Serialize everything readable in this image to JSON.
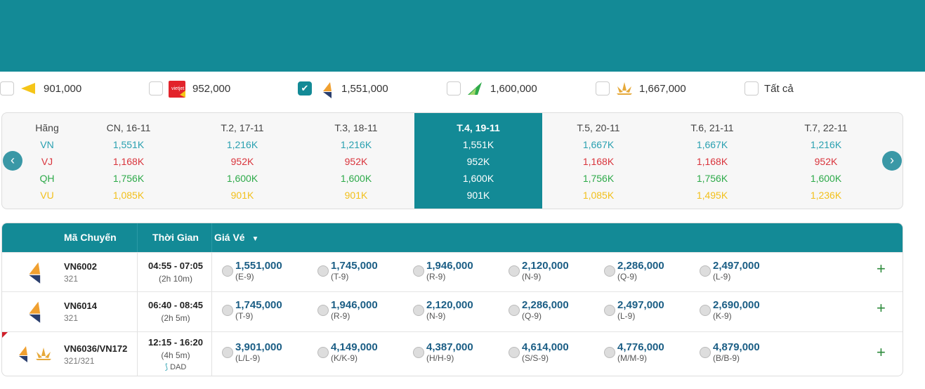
{
  "filters": [
    {
      "airline": "VU",
      "price": "901,000",
      "checked": false
    },
    {
      "airline": "VJ",
      "price": "952,000",
      "checked": false
    },
    {
      "airline": "VN",
      "price": "1,551,000",
      "checked": true
    },
    {
      "airline": "QH",
      "price": "1,600,000",
      "checked": false
    },
    {
      "airline": "VN-partner",
      "price": "1,667,000",
      "checked": false
    },
    {
      "airline": "all",
      "price": "Tất cả",
      "checked": false
    }
  ],
  "dates": {
    "label_header": "Hãng",
    "airlines": [
      "VN",
      "VJ",
      "QH",
      "VU"
    ],
    "columns": [
      {
        "date": "CN, 16-11",
        "prices": [
          "1,551K",
          "1,168K",
          "1,756K",
          "1,085K"
        ]
      },
      {
        "date": "T.2, 17-11",
        "prices": [
          "1,216K",
          "952K",
          "1,600K",
          "901K"
        ]
      },
      {
        "date": "T.3, 18-11",
        "prices": [
          "1,216K",
          "952K",
          "1,600K",
          "901K"
        ]
      },
      {
        "date": "T.4, 19-11",
        "prices": [
          "1,551K",
          "952K",
          "1,600K",
          "901K"
        ],
        "selected": true
      },
      {
        "date": "T.5, 20-11",
        "prices": [
          "1,667K",
          "1,168K",
          "1,756K",
          "1,085K"
        ]
      },
      {
        "date": "T.6, 21-11",
        "prices": [
          "1,667K",
          "1,168K",
          "1,756K",
          "1,495K"
        ]
      },
      {
        "date": "T.7, 22-11",
        "prices": [
          "1,216K",
          "952K",
          "1,600K",
          "1,236K"
        ]
      }
    ]
  },
  "flights": {
    "headers": {
      "code": "Mã Chuyến",
      "time": "Thời Gian",
      "price": "Giá Vé"
    },
    "rows": [
      {
        "code": "VN6002",
        "aircraft": "321",
        "time": "04:55 - 07:05",
        "duration": "(2h 10m)",
        "stop": "",
        "fares": [
          [
            "1,551,000",
            "(E-9)"
          ],
          [
            "1,745,000",
            "(T-9)"
          ],
          [
            "1,946,000",
            "(R-9)"
          ],
          [
            "2,120,000",
            "(N-9)"
          ],
          [
            "2,286,000",
            "(Q-9)"
          ],
          [
            "2,497,000",
            "(L-9)"
          ]
        ]
      },
      {
        "code": "VN6014",
        "aircraft": "321",
        "time": "06:40 - 08:45",
        "duration": "(2h 5m)",
        "stop": "",
        "fares": [
          [
            "1,745,000",
            "(T-9)"
          ],
          [
            "1,946,000",
            "(R-9)"
          ],
          [
            "2,120,000",
            "(N-9)"
          ],
          [
            "2,286,000",
            "(Q-9)"
          ],
          [
            "2,497,000",
            "(L-9)"
          ],
          [
            "2,690,000",
            "(K-9)"
          ]
        ]
      },
      {
        "code": "VN6036/VN172",
        "aircraft": "321/321",
        "time": "12:15 - 16:20",
        "duration": "(4h 5m)",
        "stop": "DAD",
        "fares": [
          [
            "3,901,000",
            "(L/L-9)"
          ],
          [
            "4,149,000",
            "(K/K-9)"
          ],
          [
            "4,387,000",
            "(H/H-9)"
          ],
          [
            "4,614,000",
            "(S/S-9)"
          ],
          [
            "4,776,000",
            "(M/M-9)"
          ],
          [
            "4,879,000",
            "(B/B-9)"
          ]
        ]
      }
    ]
  },
  "colors": {
    "brand": "#138a96",
    "VN": "#2aa0b0",
    "VJ": "#d9343c",
    "QH": "#2eaa4a",
    "VU": "#f2c01c"
  }
}
